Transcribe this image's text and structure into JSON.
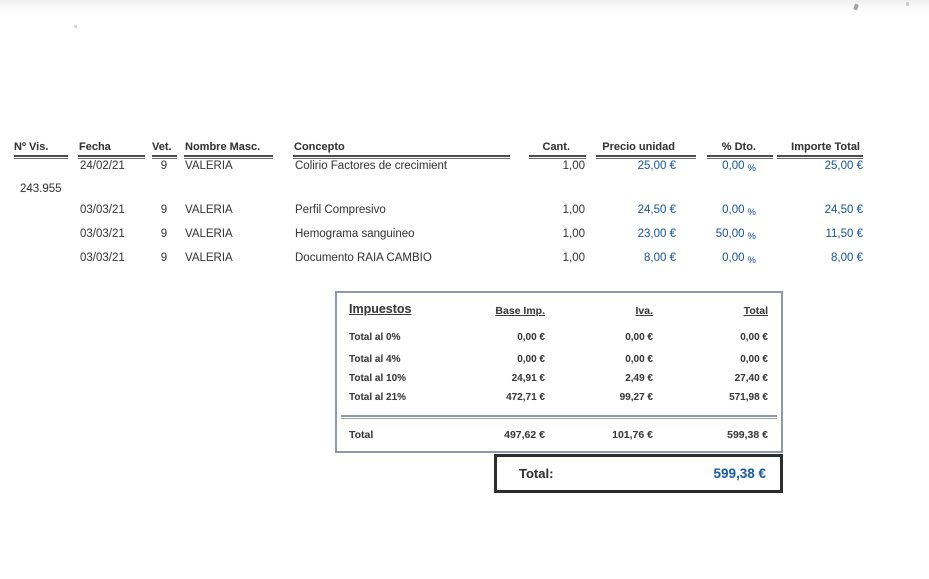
{
  "colors": {
    "accent_blue": "#1f5fa6",
    "text_dark": "#3d3d3d",
    "tax_box_border": "#8e9aa9",
    "grand_total_border": "#2d2d2d"
  },
  "table": {
    "headers": {
      "no_vis": "Nº Vis.",
      "fecha": "Fecha",
      "vet": "Vet.",
      "nombre": "Nombre Masc.",
      "concepto": "Concepto",
      "cant": "Cant.",
      "precio": "Precio unidad",
      "dto": "% Dto.",
      "importe": "Importe Total"
    },
    "visit_number": "243.955",
    "dto_suffix": "%",
    "rows": [
      {
        "fecha": "24/02/21",
        "vet": "9",
        "nombre": "VALERIA",
        "concepto": "Colirio Factores de crecimient",
        "cant": "1,00",
        "precio": "25,00 €",
        "dto": "0,00",
        "importe": "25,00 €"
      },
      {
        "fecha": "03/03/21",
        "vet": "9",
        "nombre": "VALERIA",
        "concepto": "Perfil Compresivo",
        "cant": "1,00",
        "precio": "24,50 €",
        "dto": "0,00",
        "importe": "24,50 €"
      },
      {
        "fecha": "03/03/21",
        "vet": "9",
        "nombre": "VALERIA",
        "concepto": "Hemograma sanguineo",
        "cant": "1,00",
        "precio": "23,00 €",
        "dto": "50,00",
        "importe": "11,50 €"
      },
      {
        "fecha": "03/03/21",
        "vet": "9",
        "nombre": "VALERIA",
        "concepto": "Documento RAIA CAMBIO",
        "cant": "1,00",
        "precio": "8,00 €",
        "dto": "0,00",
        "importe": "8,00 €"
      }
    ]
  },
  "tax_box": {
    "title": "Impuestos",
    "headers": {
      "base": "Base Imp.",
      "iva": "Iva.",
      "total": "Total"
    },
    "rows": [
      {
        "label": "Total al 0%",
        "base": "0,00 €",
        "iva": "0,00 €",
        "total": "0,00 €"
      },
      {
        "label": "Total al 4%",
        "base": "0,00 €",
        "iva": "0,00 €",
        "total": "0,00 €"
      },
      {
        "label": "Total al 10%",
        "base": "24,91 €",
        "iva": "2,49 €",
        "total": "27,40 €"
      },
      {
        "label": "Total al 21%",
        "base": "472,71 €",
        "iva": "99,27 €",
        "total": "571,98 €"
      }
    ],
    "total_row": {
      "label": "Total",
      "base": "497,62 €",
      "iva": "101,76 €",
      "total": "599,38 €"
    }
  },
  "grand_total": {
    "label": "Total:",
    "value": "599,38 €"
  }
}
